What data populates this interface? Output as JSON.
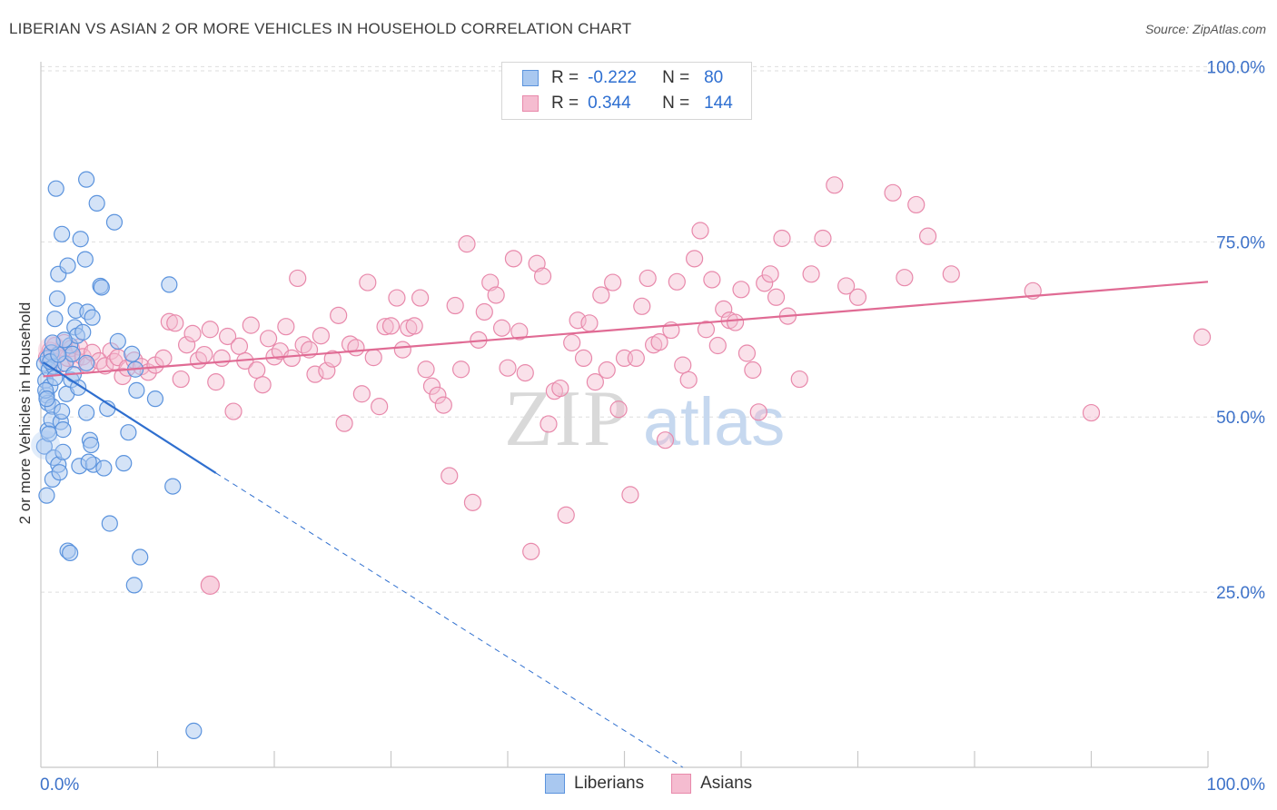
{
  "header": {
    "title": "LIBERIAN VS ASIAN 2 OR MORE VEHICLES IN HOUSEHOLD CORRELATION CHART",
    "source": "Source: ZipAtlas.com"
  },
  "watermark": {
    "part1": "ZIP",
    "part2": "atlas"
  },
  "legend": {
    "liberians": {
      "r_label": "R =",
      "r_value": "-0.222",
      "n_label": "N =",
      "n_value": "80"
    },
    "asians": {
      "r_label": "R =",
      "r_value": "0.344",
      "n_label": "N =",
      "n_value": "144"
    }
  },
  "bottom_legend": {
    "liberians": "Liberians",
    "asians": "Asians"
  },
  "colors": {
    "liberian_fill": "#a9c8f0",
    "liberian_stroke": "#5b93dd",
    "liberian_line": "#2f6fcf",
    "asian_fill": "#f5bcd0",
    "asian_stroke": "#e889ab",
    "asian_line": "#e06b94",
    "axis_text": "#3d72c9",
    "grid": "#dedede"
  },
  "chart_data": {
    "type": "scatter",
    "title": "LIBERIAN VS ASIAN 2 OR MORE VEHICLES IN HOUSEHOLD CORRELATION CHART",
    "xlabel": "",
    "ylabel": "2 or more Vehicles in Household",
    "xlim": [
      0,
      100
    ],
    "ylim": [
      0,
      102
    ],
    "x_tick_labels": [
      "0.0%",
      "100.0%"
    ],
    "y_ticks": [
      25,
      50,
      75,
      100
    ],
    "y_tick_labels": [
      "25.0%",
      "50.0%",
      "75.0%",
      "100.0%"
    ],
    "series": [
      {
        "name": "Liberians",
        "r": -0.222,
        "n": 80,
        "trend": {
          "x_start": 0.2,
          "y_start": 57.8,
          "x_solid_end": 15,
          "y_solid_end": 42.0,
          "x_dash_end": 55,
          "y_dash_end": 0
        },
        "points": [
          [
            0.3,
            57.6
          ],
          [
            0.4,
            55.2
          ],
          [
            0.5,
            53.1
          ],
          [
            0.6,
            58.4
          ],
          [
            0.6,
            52.0
          ],
          [
            0.7,
            56.8
          ],
          [
            0.8,
            54.4
          ],
          [
            0.9,
            59.2
          ],
          [
            1.0,
            51.5
          ],
          [
            1.1,
            57.2
          ],
          [
            1.2,
            55.6
          ],
          [
            0.4,
            53.8
          ],
          [
            0.5,
            52.6
          ],
          [
            0.8,
            57.9
          ],
          [
            0.3,
            45.8
          ],
          [
            0.5,
            38.8
          ],
          [
            0.6,
            48.1
          ],
          [
            0.9,
            49.6
          ],
          [
            1.0,
            41.1
          ],
          [
            1.1,
            44.2
          ],
          [
            1.3,
            82.6
          ],
          [
            1.5,
            43.2
          ],
          [
            1.6,
            42.1
          ],
          [
            1.7,
            49.3
          ],
          [
            1.8,
            50.8
          ],
          [
            1.9,
            45.0
          ],
          [
            1.2,
            64.0
          ],
          [
            1.4,
            66.9
          ],
          [
            1.5,
            70.4
          ],
          [
            1.8,
            76.1
          ],
          [
            2.1,
            57.6
          ],
          [
            2.2,
            53.3
          ],
          [
            2.3,
            71.6
          ],
          [
            2.5,
            60.2
          ],
          [
            2.6,
            55.3
          ],
          [
            2.7,
            59.0
          ],
          [
            2.9,
            62.8
          ],
          [
            3.0,
            65.2
          ],
          [
            3.1,
            61.6
          ],
          [
            3.2,
            54.2
          ],
          [
            3.3,
            43.0
          ],
          [
            3.4,
            75.4
          ],
          [
            3.6,
            62.1
          ],
          [
            3.8,
            72.5
          ],
          [
            3.9,
            57.7
          ],
          [
            4.0,
            65.0
          ],
          [
            4.2,
            46.7
          ],
          [
            4.3,
            46.0
          ],
          [
            4.4,
            64.2
          ],
          [
            4.5,
            43.2
          ],
          [
            1.9,
            48.2
          ],
          [
            2.3,
            30.9
          ],
          [
            2.5,
            30.6
          ],
          [
            3.9,
            50.6
          ],
          [
            4.1,
            43.6
          ],
          [
            3.9,
            83.9
          ],
          [
            4.8,
            80.5
          ],
          [
            5.1,
            68.7
          ],
          [
            5.2,
            68.5
          ],
          [
            5.4,
            42.7
          ],
          [
            5.7,
            51.2
          ],
          [
            5.9,
            34.8
          ],
          [
            6.3,
            77.8
          ],
          [
            6.6,
            60.8
          ],
          [
            7.1,
            43.4
          ],
          [
            7.5,
            47.8
          ],
          [
            7.8,
            59.0
          ],
          [
            8.0,
            26.0
          ],
          [
            8.1,
            56.8
          ],
          [
            8.2,
            53.8
          ],
          [
            8.5,
            30.0
          ],
          [
            9.8,
            52.6
          ],
          [
            11.0,
            68.9
          ],
          [
            11.3,
            40.1
          ],
          [
            13.1,
            5.2
          ],
          [
            1.5,
            58.9
          ],
          [
            2.0,
            61.0
          ],
          [
            2.8,
            56.1
          ],
          [
            0.7,
            47.6
          ],
          [
            1.0,
            60.6
          ]
        ]
      },
      {
        "name": "Asians",
        "r": 0.344,
        "n": 144,
        "trend": {
          "x_start": 0.2,
          "y_start": 55.8,
          "x_end": 100,
          "y_end": 69.3
        },
        "points": [
          [
            0.5,
            58.5
          ],
          [
            0.8,
            59.5
          ],
          [
            1.0,
            58.0
          ],
          [
            1.2,
            60.2
          ],
          [
            1.5,
            59.0
          ],
          [
            1.8,
            57.6
          ],
          [
            2.0,
            60.6
          ],
          [
            2.3,
            58.4
          ],
          [
            2.6,
            59.8
          ],
          [
            3.0,
            58.2
          ],
          [
            3.3,
            60.0
          ],
          [
            3.6,
            58.6
          ],
          [
            4.0,
            57.4
          ],
          [
            4.4,
            59.2
          ],
          [
            5.0,
            58.0
          ],
          [
            5.5,
            57.3
          ],
          [
            6.0,
            59.4
          ],
          [
            6.3,
            57.9
          ],
          [
            6.6,
            58.5
          ],
          [
            7.0,
            55.8
          ],
          [
            7.4,
            57.0
          ],
          [
            8.0,
            58.1
          ],
          [
            8.6,
            57.2
          ],
          [
            9.2,
            56.4
          ],
          [
            9.8,
            57.4
          ],
          [
            10.5,
            58.4
          ],
          [
            11.0,
            63.6
          ],
          [
            11.5,
            63.4
          ],
          [
            12.0,
            55.4
          ],
          [
            12.5,
            60.3
          ],
          [
            13.0,
            61.9
          ],
          [
            13.5,
            58.1
          ],
          [
            14.0,
            58.9
          ],
          [
            14.5,
            62.5
          ],
          [
            15.0,
            55.0
          ],
          [
            15.5,
            58.4
          ],
          [
            16.0,
            61.5
          ],
          [
            16.5,
            50.8
          ],
          [
            17.0,
            60.1
          ],
          [
            17.5,
            58.0
          ],
          [
            18.0,
            63.1
          ],
          [
            18.5,
            56.7
          ],
          [
            19.0,
            54.6
          ],
          [
            19.5,
            61.2
          ],
          [
            20.0,
            58.6
          ],
          [
            20.5,
            59.4
          ],
          [
            21.0,
            62.9
          ],
          [
            21.5,
            58.4
          ],
          [
            22.0,
            69.8
          ],
          [
            22.5,
            60.3
          ],
          [
            23.0,
            59.6
          ],
          [
            23.5,
            56.1
          ],
          [
            24.0,
            61.6
          ],
          [
            24.5,
            56.6
          ],
          [
            25.0,
            58.3
          ],
          [
            25.5,
            64.5
          ],
          [
            26.0,
            49.1
          ],
          [
            26.5,
            60.4
          ],
          [
            27.0,
            59.9
          ],
          [
            27.5,
            53.3
          ],
          [
            28.0,
            69.2
          ],
          [
            28.5,
            58.5
          ],
          [
            29.0,
            51.5
          ],
          [
            29.5,
            62.9
          ],
          [
            30.0,
            63.0
          ],
          [
            30.5,
            67.0
          ],
          [
            31.0,
            59.6
          ],
          [
            31.5,
            62.7
          ],
          [
            32.0,
            63.0
          ],
          [
            32.5,
            67.0
          ],
          [
            33.0,
            56.8
          ],
          [
            33.5,
            54.4
          ],
          [
            34.0,
            53.1
          ],
          [
            34.5,
            51.7
          ],
          [
            35.0,
            41.6
          ],
          [
            35.5,
            65.9
          ],
          [
            36.0,
            56.8
          ],
          [
            36.5,
            74.7
          ],
          [
            37.0,
            37.8
          ],
          [
            37.5,
            61.0
          ],
          [
            38.0,
            65.0
          ],
          [
            38.5,
            69.2
          ],
          [
            39.0,
            67.4
          ],
          [
            39.5,
            62.7
          ],
          [
            40.0,
            57.0
          ],
          [
            40.5,
            72.6
          ],
          [
            41.0,
            62.2
          ],
          [
            41.5,
            56.3
          ],
          [
            42.0,
            30.8
          ],
          [
            42.5,
            71.9
          ],
          [
            43.0,
            70.1
          ],
          [
            43.5,
            49.0
          ],
          [
            44.0,
            53.7
          ],
          [
            44.5,
            54.1
          ],
          [
            45.0,
            36.0
          ],
          [
            45.5,
            60.6
          ],
          [
            46.0,
            63.8
          ],
          [
            46.5,
            58.4
          ],
          [
            47.0,
            63.4
          ],
          [
            47.5,
            55.0
          ],
          [
            48.0,
            67.4
          ],
          [
            48.5,
            56.7
          ],
          [
            49.0,
            69.2
          ],
          [
            49.5,
            51.1
          ],
          [
            50.0,
            58.4
          ],
          [
            50.5,
            38.9
          ],
          [
            51.0,
            58.4
          ],
          [
            51.5,
            65.8
          ],
          [
            52.0,
            69.8
          ],
          [
            52.5,
            60.3
          ],
          [
            53.0,
            60.7
          ],
          [
            53.5,
            46.7
          ],
          [
            54.0,
            62.4
          ],
          [
            54.5,
            69.3
          ],
          [
            55.0,
            57.4
          ],
          [
            55.5,
            55.3
          ],
          [
            56.0,
            72.6
          ],
          [
            56.5,
            76.6
          ],
          [
            57.0,
            62.5
          ],
          [
            57.5,
            69.6
          ],
          [
            58.0,
            60.2
          ],
          [
            58.5,
            65.4
          ],
          [
            59.0,
            63.8
          ],
          [
            59.5,
            63.5
          ],
          [
            60.0,
            68.2
          ],
          [
            60.5,
            59.1
          ],
          [
            61.0,
            56.7
          ],
          [
            61.5,
            50.7
          ],
          [
            62.0,
            69.1
          ],
          [
            62.5,
            70.4
          ],
          [
            63.0,
            67.1
          ],
          [
            63.5,
            75.5
          ],
          [
            64.0,
            64.4
          ],
          [
            65.0,
            55.4
          ],
          [
            66.0,
            70.4
          ],
          [
            67.0,
            75.5
          ],
          [
            68.0,
            83.1
          ],
          [
            69.0,
            68.7
          ],
          [
            70.0,
            67.1
          ],
          [
            73.0,
            82.0
          ],
          [
            74.0,
            69.9
          ],
          [
            75.0,
            80.3
          ],
          [
            76.0,
            75.8
          ],
          [
            78.0,
            70.4
          ],
          [
            85.0,
            68.0
          ],
          [
            90.0,
            50.6
          ],
          [
            99.5,
            61.4
          ]
        ]
      }
    ]
  }
}
